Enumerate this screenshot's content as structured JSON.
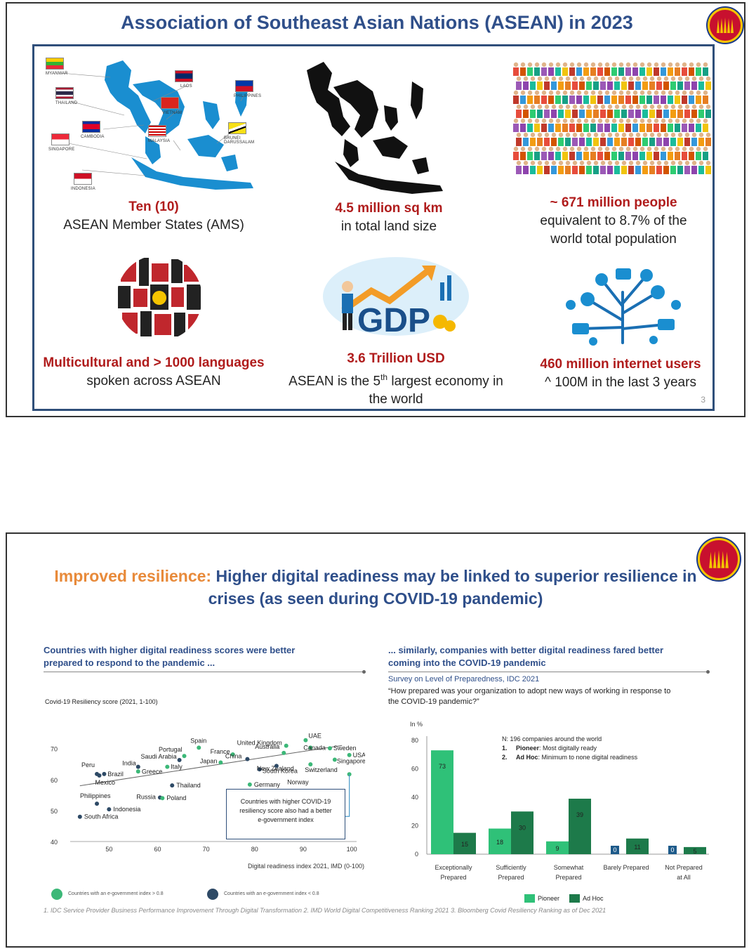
{
  "slide1": {
    "title": "Association of Southeast Asian Nations (ASEAN) in 2023",
    "page_number": "3",
    "map_labels": [
      "MYANMAR",
      "LAOS",
      "PHILIPPINES",
      "THAILAND",
      "VIETNAM",
      "CAMBODIA",
      "MALAYSIA",
      "BRUNEI DARUSSALAM",
      "SINGAPORE",
      "INDONESIA"
    ],
    "cells": [
      {
        "highlight": "Ten (10)",
        "lines": [
          "ASEAN Member States (AMS)"
        ]
      },
      {
        "highlight": "4.5 million sq km",
        "lines": [
          "in total land size"
        ]
      },
      {
        "highlight": "~ 671 million people",
        "lines": [
          "equivalent to 8.7% of the",
          "world total population"
        ]
      },
      {
        "highlight": "Multicultural and > 1000 languages",
        "lines": [
          "spoken across ASEAN"
        ]
      },
      {
        "highlight": "3.6 Trillion USD",
        "line1_pre": "ASEAN is the 5",
        "line1_sup": "th",
        "line1_post": " largest economy in",
        "line2": "the world"
      },
      {
        "highlight": "460 million internet users",
        "lines": [
          "^ 100M in the last 3 years"
        ]
      }
    ],
    "gdp_label": "GDP"
  },
  "slide2": {
    "title_orange": "Improved resilience:",
    "title_blue": " Higher digital readiness may be linked to superior resilience in crises (as seen during COVID-19 pandemic)",
    "left_heading": [
      "Countries with higher digital readiness scores were better",
      "prepared to respond to the pandemic ..."
    ],
    "right_heading": [
      "... similarly, companies with better digital readiness fared better",
      "coming into the COVID-19 pandemic"
    ],
    "survey_title": "Survey on Level of Preparedness, IDC 2021",
    "survey_question": [
      "“How prepared was your organization to adopt new ways of working in response to",
      "the COVID-19 pandemic?”"
    ],
    "callout": [
      "Countries with higher COVID-19",
      "resiliency score also had a better",
      "e-government index"
    ],
    "legend_high": "Countries with an e-government index > 0.8",
    "legend_low": "Countries with an e-government index < 0.8",
    "note_n": "N: 196 companies around the world",
    "note_1_num": "1.",
    "note_1_bold": "Pioneer",
    "note_1_rest": ": Most digitally ready",
    "note_2_num": "2.",
    "note_2_bold": "Ad Hoc",
    "note_2_rest": ": Minimum to none digital readiness",
    "footnote": "1. IDC Service Provider Business Performance Improvement Through Digital Transformation  2. IMD World Digital Competitiveness Ranking 2021  3. Bloomberg Covid Resiliency Ranking as of Dec 2021"
  },
  "chart_data": [
    {
      "type": "scatter",
      "title": "",
      "ylabel": "Covid-19 Resiliency score (2021, 1-100)",
      "xlabel": "Digital readiness index 2021, IMD (0-100)",
      "xlim": [
        42,
        101
      ],
      "ylim": [
        40,
        74
      ],
      "xticks": [
        50,
        60,
        70,
        80,
        90,
        100
      ],
      "yticks": [
        40,
        50,
        60,
        70
      ],
      "colors": {
        "high": "#3cb878",
        "low": "#2e4a66"
      },
      "trendline": [
        [
          44,
          58
        ],
        [
          98,
          71
        ]
      ],
      "points": [
        {
          "name": "Spain",
          "x": 68.5,
          "y": 70.3,
          "group": "high"
        },
        {
          "name": "UAE",
          "x": 90.5,
          "y": 72.7,
          "group": "high"
        },
        {
          "name": "United Kingdom",
          "x": 86.5,
          "y": 70.9,
          "group": "high"
        },
        {
          "name": "Canada",
          "x": 91.5,
          "y": 70.3,
          "group": "high"
        },
        {
          "name": "Sweden",
          "x": 95.5,
          "y": 70.1,
          "group": "high"
        },
        {
          "name": "Portugal",
          "x": 65.5,
          "y": 67.6,
          "group": "high"
        },
        {
          "name": "France",
          "x": 75.5,
          "y": 68.1,
          "group": "high"
        },
        {
          "name": "Australia",
          "x": 86.0,
          "y": 68.6,
          "group": "high"
        },
        {
          "name": "USA",
          "x": 99.5,
          "y": 67.9,
          "group": "high"
        },
        {
          "name": "Saudi Arabia",
          "x": 64.5,
          "y": 66.3,
          "group": "low"
        },
        {
          "name": "Japan",
          "x": 73.0,
          "y": 65.5,
          "group": "high"
        },
        {
          "name": "China",
          "x": 78.5,
          "y": 66.6,
          "group": "low"
        },
        {
          "name": "Singapore",
          "x": 96.5,
          "y": 66.4,
          "group": "high"
        },
        {
          "name": "India",
          "x": 56.0,
          "y": 64.1,
          "group": "low"
        },
        {
          "name": "Italy",
          "x": 62.0,
          "y": 64.1,
          "group": "high"
        },
        {
          "name": "Peru",
          "x": 47.5,
          "y": 61.8,
          "group": "low"
        },
        {
          "name": "Brazil",
          "x": 49.0,
          "y": 61.8,
          "group": "low"
        },
        {
          "name": "Greece",
          "x": 56.0,
          "y": 62.6,
          "group": "high"
        },
        {
          "name": "Mexico",
          "x": 48.0,
          "y": 61.3,
          "group": "low"
        },
        {
          "name": "New Zealand",
          "x": 81.0,
          "y": 63.3,
          "group": "low"
        },
        {
          "name": "South Korea",
          "x": 84.5,
          "y": 64.4,
          "group": "low"
        },
        {
          "name": "Switzerland",
          "x": 91.5,
          "y": 64.9,
          "group": "high"
        },
        {
          "name": "Norway",
          "x": 99.5,
          "y": 61.7,
          "group": "high"
        },
        {
          "name": "Thailand",
          "x": 63.0,
          "y": 58.1,
          "group": "low"
        },
        {
          "name": "Germany",
          "x": 79.0,
          "y": 58.4,
          "group": "high"
        },
        {
          "name": "Philippines",
          "x": 47.5,
          "y": 52.2,
          "group": "low"
        },
        {
          "name": "Russia",
          "x": 60.5,
          "y": 54.2,
          "group": "low"
        },
        {
          "name": "Poland",
          "x": 61.0,
          "y": 54.0,
          "group": "high"
        },
        {
          "name": "Indonesia",
          "x": 50.0,
          "y": 50.4,
          "group": "low"
        },
        {
          "name": "South Africa",
          "x": 44.0,
          "y": 48.0,
          "group": "low"
        }
      ]
    },
    {
      "type": "bar",
      "title": "",
      "ylabel": "In %",
      "ylim": [
        0,
        80
      ],
      "yticks": [
        0,
        20,
        40,
        60,
        80
      ],
      "categories": [
        [
          "Exceptionally",
          "Prepared"
        ],
        [
          "Sufficiently",
          "Prepared"
        ],
        [
          "Somewhat",
          "Prepared"
        ],
        [
          "Barely Prepared"
        ],
        [
          "Not Prepared",
          "at All"
        ]
      ],
      "series": [
        {
          "name": "Pioneer",
          "color": "#2fc178",
          "values": [
            73,
            18,
            9,
            0,
            0
          ]
        },
        {
          "name": "Ad Hoc",
          "color": "#1d7a4a",
          "values": [
            15,
            30,
            39,
            11,
            5
          ]
        }
      ]
    }
  ]
}
